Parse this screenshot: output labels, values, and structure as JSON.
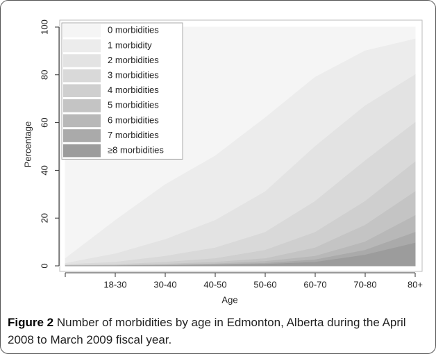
{
  "chart_data": {
    "type": "stacked_area",
    "xlabel": "Age",
    "ylabel": "Percentage",
    "categories": [
      null,
      "18-30",
      "30-40",
      "40-50",
      "50-60",
      "60-70",
      "70-80",
      "80+"
    ],
    "series": [
      {
        "name": "0 morbidities",
        "color": "#f5f5f5",
        "values": [
          97,
          81,
          66,
          54,
          38,
          21,
          10,
          5
        ]
      },
      {
        "name": "1 morbidity",
        "color": "#ececec",
        "values": [
          2,
          14,
          23,
          27,
          31,
          29,
          23,
          15
        ]
      },
      {
        "name": "2 morbidities",
        "color": "#e3e3e3",
        "values": [
          0.5,
          3.5,
          7,
          11.5,
          17,
          23,
          23,
          20
        ]
      },
      {
        "name": "3 morbidities",
        "color": "#d9d9d9",
        "values": [
          0.3,
          1,
          2.5,
          4.5,
          7.5,
          13,
          17,
          16.5
        ]
      },
      {
        "name": "4 morbidities",
        "color": "#cfcfcf",
        "values": [
          0.1,
          0.3,
          0.8,
          1.5,
          3.5,
          6.5,
          10,
          12.5
        ]
      },
      {
        "name": "5 morbidities",
        "color": "#c4c4c4",
        "values": [
          0.1,
          0.1,
          0.4,
          0.7,
          1.2,
          3.5,
          7,
          10
        ]
      },
      {
        "name": "6 morbidities",
        "color": "#b8b8b8",
        "values": [
          0,
          0.1,
          0.1,
          0.3,
          0.8,
          1.5,
          3.5,
          7
        ]
      },
      {
        "name": "7 morbidities",
        "color": "#aaaaaa",
        "values": [
          0,
          0,
          0.1,
          0.2,
          0.4,
          1,
          2,
          4.5
        ]
      },
      {
        "name": "≥8 morbidities",
        "color": "#9c9c9c",
        "values": [
          0,
          0,
          0.1,
          0.3,
          0.6,
          1.5,
          4.5,
          9.5
        ]
      }
    ],
    "ylim": [
      0,
      100
    ],
    "yticks": [
      0,
      20,
      40,
      60,
      80,
      100
    ],
    "legend": "top-left",
    "grid": false
  },
  "caption": {
    "label": "Figure 2",
    "text": "Number of morbidities by age in Edmonton, Alberta during the April 2008 to March 2009 fiscal year."
  }
}
